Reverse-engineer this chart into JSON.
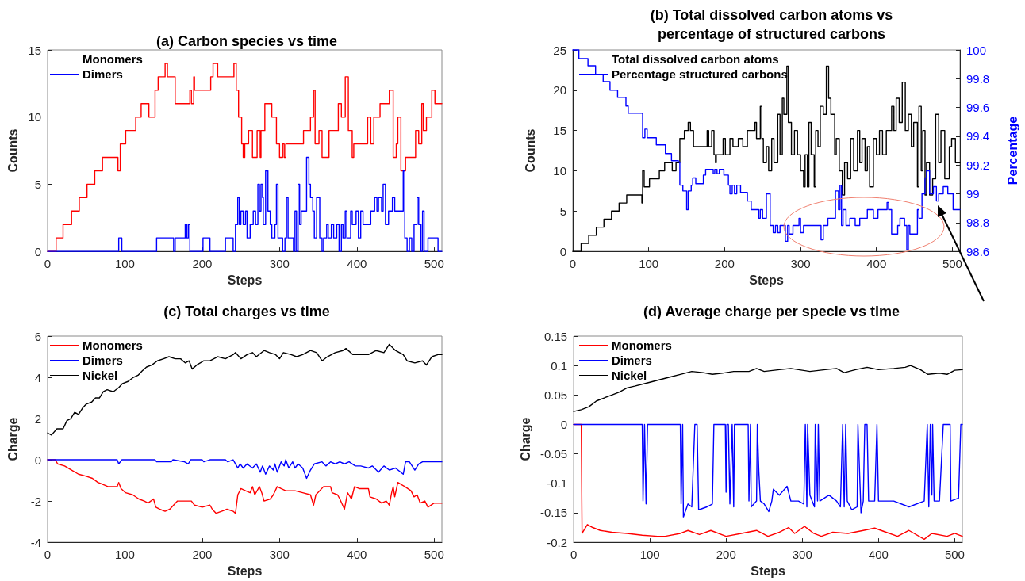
{
  "chart_data": [
    {
      "type": "step",
      "title": "(a) Carbon species vs time",
      "xlabel": "Steps",
      "ylabel": "Counts",
      "xlim": [
        0,
        510
      ],
      "xticks": [
        0,
        100,
        200,
        300,
        400,
        500
      ],
      "ylim": [
        0,
        15
      ],
      "yticks": [
        0,
        5,
        10,
        15
      ],
      "grid": false,
      "legend": "top left",
      "marker": "none",
      "line_style": "solid",
      "series": [
        {
          "name": "Monomers",
          "color": "#ff0000",
          "x": [
            0,
            11,
            20,
            31,
            41,
            51,
            61,
            71,
            91,
            94,
            101,
            114,
            121,
            131,
            139,
            143,
            152,
            155,
            165,
            184,
            186,
            189,
            190,
            211,
            214,
            220,
            241,
            244,
            247,
            251,
            253,
            255,
            260,
            265,
            271,
            275,
            276,
            281,
            290,
            296,
            300,
            304,
            306,
            308,
            331,
            340,
            344,
            346,
            351,
            355,
            364,
            376,
            380,
            385,
            389,
            394,
            396,
            414,
            418,
            422,
            430,
            442,
            447,
            451,
            453,
            457,
            463,
            476,
            480,
            484,
            486,
            490,
            497,
            501,
            510
          ],
          "values": [
            0,
            1,
            2,
            3,
            4,
            5,
            6,
            7,
            6,
            8,
            9,
            10,
            11,
            10,
            12,
            13,
            14,
            13,
            11,
            12,
            11,
            13,
            12,
            13,
            14,
            13,
            14,
            12,
            10,
            8,
            7,
            8,
            9,
            7,
            9,
            7,
            9,
            11,
            10,
            8,
            7,
            8,
            7,
            8,
            9,
            10,
            12,
            8,
            9,
            7,
            9,
            11,
            10,
            13,
            9,
            7,
            8,
            10,
            8,
            10,
            11,
            12,
            7,
            8,
            10,
            6,
            7,
            9,
            8,
            11,
            9,
            10,
            12,
            11,
            11
          ]
        },
        {
          "name": "Dimers",
          "color": "#0000ff",
          "x": [
            0,
            92,
            96,
            141,
            143,
            163,
            165,
            178,
            180,
            182,
            184,
            201,
            210,
            230,
            240,
            243,
            246,
            248,
            250,
            253,
            256,
            258,
            262,
            266,
            269,
            272,
            274,
            276,
            278,
            279,
            282,
            285,
            288,
            290,
            294,
            296,
            298,
            304,
            307,
            309,
            311,
            318,
            320,
            322,
            324,
            326,
            328,
            335,
            338,
            340,
            343,
            345,
            348,
            352,
            355,
            357,
            361,
            363,
            367,
            370,
            374,
            377,
            380,
            382,
            385,
            387,
            392,
            394,
            399,
            402,
            405,
            408,
            418,
            423,
            426,
            428,
            432,
            434,
            437,
            441,
            446,
            449,
            460,
            462,
            465,
            468,
            471,
            474,
            478,
            480,
            483,
            485,
            487,
            492,
            505,
            510
          ],
          "values": [
            0,
            1,
            0,
            1,
            1,
            0,
            1,
            2,
            1,
            2,
            0,
            1,
            0,
            1,
            0,
            2,
            4,
            2,
            3,
            2,
            3,
            1,
            2,
            3,
            2,
            5,
            3,
            5,
            4,
            2,
            6,
            3,
            2,
            1,
            2,
            5,
            1,
            0,
            1,
            4,
            1,
            0,
            3,
            0,
            5,
            2,
            3,
            7,
            5,
            4,
            3,
            1,
            4,
            1,
            0,
            1,
            2,
            1,
            2,
            1,
            2,
            0,
            2,
            1,
            3,
            1,
            3,
            2,
            3,
            1,
            3,
            2,
            3,
            4,
            3,
            4,
            3,
            5,
            2,
            3,
            4,
            3,
            6,
            1,
            0,
            1,
            0,
            2,
            4,
            2,
            0,
            3,
            0,
            1,
            0,
            0
          ]
        }
      ]
    },
    {
      "type": "step",
      "title": "(b) Total dissolved carbon atoms vs\npercentage of structured carbons",
      "xlabel": "Steps",
      "ylabel": "Counts",
      "y2label": "Percentage",
      "xlim": [
        0,
        510
      ],
      "xticks": [
        0,
        100,
        200,
        300,
        400,
        500
      ],
      "ylim": [
        0,
        25
      ],
      "yticks": [
        0,
        5,
        10,
        15,
        20,
        25
      ],
      "y2lim": [
        98.6,
        100
      ],
      "y2ticks": [
        98.6,
        98.8,
        99,
        99.2,
        99.4,
        99.6,
        99.8,
        100
      ],
      "grid": false,
      "legend": "top left",
      "marker": "none",
      "line_style": "solid",
      "series": [
        {
          "name": "Total dissolved carbon atoms",
          "color": "#000000",
          "x": [
            0,
            11,
            21,
            31,
            41,
            51,
            61,
            71,
            91,
            92,
            94,
            101,
            114,
            121,
            131,
            136,
            141,
            147,
            152,
            155,
            159,
            177,
            179,
            183,
            186,
            188,
            189,
            198,
            201,
            207,
            211,
            218,
            224,
            230,
            240,
            242,
            247,
            249,
            251,
            255,
            258,
            262,
            265,
            270,
            273,
            276,
            278,
            282,
            284,
            288,
            292,
            296,
            300,
            304,
            306,
            309,
            311,
            314,
            318,
            320,
            323,
            326,
            330,
            334,
            337,
            340,
            345,
            347,
            351,
            355,
            358,
            362,
            366,
            370,
            375,
            378,
            381,
            385,
            388,
            391,
            396,
            400,
            404,
            408,
            413,
            420,
            423,
            426,
            430,
            434,
            438,
            442,
            446,
            449,
            454,
            456,
            459,
            461,
            464,
            466,
            470,
            474,
            478,
            482,
            485,
            490,
            496,
            499,
            504,
            510
          ],
          "values": [
            0,
            1,
            2,
            3,
            4,
            5,
            6,
            7,
            6,
            10,
            8,
            9,
            10,
            11,
            10,
            11,
            14,
            15,
            16,
            15,
            13,
            15,
            13,
            15,
            12,
            11,
            12,
            14,
            12,
            14,
            13,
            14,
            13,
            15,
            16,
            14,
            18,
            14,
            11,
            13,
            10,
            14,
            11,
            17,
            12,
            19,
            17,
            23,
            16,
            12,
            15,
            12,
            10,
            8,
            12,
            8,
            16,
            12,
            8,
            15,
            13,
            18,
            17,
            23,
            19,
            17,
            12,
            14,
            10,
            7,
            11,
            9,
            14,
            10,
            15,
            11,
            14,
            10,
            13,
            8,
            14,
            12,
            15,
            12,
            15,
            18,
            15,
            19,
            16,
            21,
            15,
            17,
            13,
            16,
            8,
            18,
            10,
            15,
            7,
            11,
            7,
            9,
            17,
            11,
            15,
            9,
            13,
            14,
            11,
            11
          ]
        },
        {
          "name": "Percentage structured carbons",
          "color": "#0000ff",
          "axis": "y2",
          "x": [
            0,
            8,
            20,
            30,
            40,
            49,
            59,
            70,
            73,
            92,
            95,
            98,
            110,
            122,
            130,
            139,
            141,
            145,
            150,
            152,
            156,
            158,
            162,
            172,
            175,
            185,
            187,
            190,
            193,
            199,
            205,
            207,
            210,
            213,
            216,
            221,
            230,
            235,
            245,
            247,
            250,
            255,
            260,
            264,
            267,
            270,
            273,
            280,
            283,
            285,
            290,
            298,
            300,
            304,
            325,
            327,
            330,
            336,
            346,
            350,
            352,
            354,
            356,
            360,
            365,
            372,
            378,
            388,
            396,
            402,
            414,
            416,
            420,
            428,
            431,
            437,
            440,
            442,
            444,
            454,
            456,
            460,
            464,
            466,
            470,
            475,
            479,
            482,
            488,
            494,
            501,
            510
          ],
          "values": [
            100,
            99.94,
            99.89,
            99.83,
            99.78,
            99.72,
            99.67,
            99.61,
            99.56,
            99.39,
            99.45,
            99.39,
            99.34,
            99.28,
            99.23,
            99.22,
            99.06,
            99.02,
            98.89,
            99.02,
            99.06,
            99.11,
            99.07,
            99.13,
            99.17,
            99.14,
            99.17,
            99.14,
            99.17,
            99.13,
            99.06,
            99.0,
            99.06,
            99.0,
            99.06,
            99.01,
            98.95,
            98.89,
            98.83,
            98.89,
            98.83,
            99.0,
            98.78,
            98.73,
            98.78,
            98.73,
            98.78,
            98.67,
            98.78,
            98.72,
            98.78,
            98.83,
            98.73,
            98.78,
            98.78,
            98.68,
            98.78,
            98.83,
            99.02,
            98.89,
            99.06,
            98.78,
            98.89,
            98.78,
            98.83,
            98.78,
            98.83,
            98.89,
            98.83,
            98.89,
            98.94,
            98.89,
            98.72,
            98.78,
            98.83,
            98.78,
            98.61,
            98.78,
            98.72,
            98.89,
            98.83,
            99.0,
            99.11,
            99.16,
            99.0,
            99.05,
            98.95,
            99.0,
            99.05,
            99.0,
            98.89,
            98.89
          ]
        }
      ]
    },
    {
      "type": "line",
      "title": "(c) Total charges vs time",
      "xlabel": "Steps",
      "ylabel": "Charge",
      "xlim": [
        0,
        510
      ],
      "xticks": [
        0,
        100,
        200,
        300,
        400,
        500
      ],
      "ylim": [
        -4,
        6
      ],
      "yticks": [
        -4,
        -2,
        0,
        2,
        4,
        6
      ],
      "grid": false,
      "legend": "top left",
      "marker": "none",
      "line_style": "solid",
      "series": [
        {
          "name": "Monomers",
          "color": "#ff0000",
          "x": [
            0,
            10,
            13,
            22,
            31,
            40,
            50,
            58,
            65,
            72,
            78,
            90,
            92,
            95,
            101,
            110,
            118,
            125,
            130,
            137,
            140,
            145,
            152,
            158,
            163,
            168,
            180,
            186,
            190,
            200,
            210,
            213,
            218,
            225,
            232,
            240,
            243,
            246,
            250,
            256,
            262,
            265,
            268,
            274,
            277,
            280,
            288,
            292,
            297,
            302,
            308,
            320,
            330,
            340,
            344,
            347,
            357,
            366,
            368,
            375,
            378,
            384,
            388,
            393,
            397,
            403,
            415,
            417,
            425,
            432,
            438,
            442,
            445,
            447,
            449,
            453,
            462,
            470,
            474,
            478,
            482,
            488,
            492,
            500,
            510
          ],
          "values": [
            0,
            0,
            -0.2,
            -0.3,
            -0.5,
            -0.7,
            -0.8,
            -0.9,
            -1.1,
            -1.2,
            -1.3,
            -1.3,
            -1.1,
            -1.4,
            -1.6,
            -1.7,
            -1.9,
            -2.0,
            -2.1,
            -1.9,
            -2.3,
            -2.4,
            -2.5,
            -2.4,
            -2.2,
            -2.0,
            -2.0,
            -2.0,
            -2.2,
            -2.3,
            -2.2,
            -2.4,
            -2.6,
            -2.5,
            -2.4,
            -2.5,
            -2.6,
            -1.7,
            -1.4,
            -1.5,
            -1.6,
            -1.3,
            -1.7,
            -1.3,
            -1.6,
            -2.0,
            -1.9,
            -1.7,
            -1.3,
            -1.4,
            -1.5,
            -1.5,
            -1.6,
            -1.7,
            -2.2,
            -1.7,
            -1.3,
            -1.3,
            -1.6,
            -1.7,
            -1.9,
            -2.4,
            -1.6,
            -1.9,
            -1.3,
            -1.4,
            -1.4,
            -1.8,
            -1.9,
            -2.1,
            -2.0,
            -2.2,
            -1.6,
            -1.3,
            -1.8,
            -1.1,
            -1.3,
            -1.5,
            -1.8,
            -1.7,
            -2.1,
            -2.0,
            -2.3,
            -2.1,
            -2.1
          ]
        },
        {
          "name": "Dimers",
          "color": "#0000ff",
          "x": [
            0,
            90,
            92,
            96,
            139,
            141,
            160,
            162,
            177,
            182,
            185,
            200,
            202,
            210,
            230,
            233,
            240,
            246,
            249,
            253,
            258,
            265,
            270,
            275,
            278,
            282,
            287,
            292,
            294,
            297,
            302,
            306,
            308,
            312,
            317,
            320,
            324,
            330,
            335,
            340,
            345,
            355,
            360,
            366,
            372,
            378,
            384,
            390,
            398,
            405,
            415,
            420,
            428,
            435,
            442,
            450,
            460,
            463,
            468,
            475,
            480,
            485,
            492,
            505,
            510
          ],
          "values": [
            0,
            0,
            -0.2,
            0,
            0,
            -0.1,
            -0.1,
            0,
            -0.1,
            -0.2,
            0,
            0,
            -0.1,
            0,
            0,
            -0.1,
            0,
            -0.4,
            -0.2,
            -0.4,
            -0.2,
            -0.4,
            -0.2,
            -0.6,
            -0.3,
            -0.7,
            -0.3,
            -0.5,
            -0.2,
            -0.6,
            -0.1,
            -0.3,
            0,
            -0.4,
            -0.1,
            -0.4,
            -0.2,
            -0.4,
            -0.9,
            -0.5,
            -0.2,
            -0.1,
            -0.3,
            -0.1,
            -0.2,
            -0.1,
            -0.2,
            -0.1,
            -0.3,
            -0.3,
            -0.4,
            -0.3,
            -0.6,
            -0.3,
            -0.5,
            -0.4,
            -0.7,
            -0.1,
            -0.1,
            -0.5,
            -0.2,
            -0.1,
            -0.1,
            -0.1,
            -0.1
          ]
        },
        {
          "name": "Nickel",
          "color": "#000000",
          "x": [
            0,
            5,
            12,
            20,
            25,
            30,
            35,
            40,
            45,
            50,
            57,
            62,
            67,
            72,
            77,
            85,
            92,
            97,
            104,
            111,
            117,
            122,
            128,
            135,
            142,
            150,
            157,
            165,
            172,
            178,
            183,
            187,
            193,
            202,
            210,
            220,
            230,
            240,
            243,
            250,
            258,
            265,
            270,
            280,
            287,
            295,
            300,
            305,
            315,
            322,
            330,
            340,
            348,
            355,
            362,
            372,
            382,
            386,
            395,
            405,
            415,
            425,
            435,
            442,
            450,
            460,
            465,
            475,
            485,
            490,
            497,
            505,
            510
          ],
          "values": [
            1.3,
            1.2,
            1.5,
            1.5,
            1.9,
            2.0,
            2.3,
            2.2,
            2.5,
            2.7,
            2.8,
            3.0,
            3.0,
            3.3,
            3.4,
            3.3,
            3.5,
            3.7,
            3.8,
            4.0,
            4.1,
            4.3,
            4.5,
            4.6,
            4.8,
            4.9,
            5.0,
            4.9,
            4.9,
            4.7,
            4.8,
            4.4,
            4.6,
            4.8,
            4.8,
            5.0,
            4.9,
            5.1,
            5.2,
            4.9,
            5.1,
            5.2,
            5.0,
            5.3,
            5.2,
            5.1,
            4.9,
            5.2,
            5.1,
            5.0,
            5.1,
            5.3,
            5.2,
            4.8,
            5.0,
            5.2,
            5.3,
            5.4,
            5.1,
            5.1,
            5.1,
            5.3,
            5.2,
            5.6,
            5.3,
            5.1,
            4.8,
            4.7,
            4.8,
            4.6,
            5.0,
            5.1,
            5.1
          ]
        }
      ]
    },
    {
      "type": "line",
      "title": "(d) Average charge per specie vs time",
      "xlabel": "Steps",
      "ylabel": "Charge",
      "xlim": [
        0,
        510
      ],
      "xticks": [
        0,
        100,
        200,
        300,
        400,
        500
      ],
      "ylim": [
        -0.2,
        0.15
      ],
      "yticks": [
        -0.2,
        -0.15,
        -0.1,
        -0.05,
        0,
        0.05,
        0.1,
        0.15
      ],
      "grid": false,
      "legend": "top left",
      "marker": "none",
      "line_style": "solid",
      "series": [
        {
          "name": "Monomers",
          "color": "#ff0000",
          "x": [
            0,
            10,
            11,
            18,
            25,
            35,
            50,
            70,
            90,
            110,
            120,
            140,
            150,
            165,
            180,
            200,
            220,
            240,
            255,
            270,
            282,
            290,
            303,
            315,
            325,
            340,
            360,
            380,
            395,
            410,
            425,
            440,
            460,
            470,
            490,
            500,
            510
          ],
          "values": [
            0,
            0,
            -0.185,
            -0.17,
            -0.175,
            -0.18,
            -0.183,
            -0.185,
            -0.188,
            -0.19,
            -0.19,
            -0.185,
            -0.18,
            -0.187,
            -0.18,
            -0.19,
            -0.185,
            -0.18,
            -0.19,
            -0.183,
            -0.175,
            -0.185,
            -0.173,
            -0.185,
            -0.19,
            -0.183,
            -0.185,
            -0.18,
            -0.176,
            -0.183,
            -0.19,
            -0.18,
            -0.195,
            -0.185,
            -0.19,
            -0.185,
            -0.19
          ]
        },
        {
          "name": "Dimers",
          "color": "#0000ff",
          "x": [
            0,
            90,
            91,
            93,
            95,
            97,
            140,
            141,
            143,
            144,
            150,
            155,
            159,
            162,
            164,
            175,
            182,
            184,
            199,
            200,
            201,
            203,
            205,
            208,
            210,
            211,
            229,
            230,
            232,
            233,
            240,
            241,
            243,
            245,
            250,
            256,
            260,
            262,
            270,
            280,
            285,
            295,
            302,
            304,
            306,
            307,
            310,
            316,
            317,
            320,
            321,
            323,
            335,
            345,
            350,
            353,
            355,
            357,
            359,
            365,
            372,
            373,
            377,
            380,
            382,
            385,
            387,
            395,
            398,
            400,
            420,
            440,
            460,
            464,
            466,
            468,
            470,
            471,
            473,
            480,
            485,
            494,
            495,
            505,
            508,
            510
          ],
          "values": [
            0,
            0,
            -0.13,
            0,
            -0.135,
            0,
            0,
            -0.135,
            0,
            -0.157,
            -0.135,
            -0.14,
            0,
            0,
            -0.145,
            -0.14,
            -0.135,
            0,
            0,
            -0.115,
            0,
            0,
            -0.135,
            0,
            -0.14,
            0,
            0,
            -0.13,
            0,
            -0.14,
            -0.13,
            0,
            -0.08,
            -0.13,
            -0.135,
            -0.148,
            -0.13,
            -0.11,
            -0.12,
            -0.105,
            -0.13,
            -0.13,
            -0.135,
            0,
            -0.14,
            0,
            -0.12,
            -0.14,
            0,
            -0.13,
            0,
            -0.13,
            -0.12,
            -0.13,
            -0.14,
            0,
            -0.14,
            0,
            -0.13,
            -0.145,
            -0.14,
            0,
            -0.15,
            -0.13,
            0,
            0,
            -0.13,
            -0.13,
            0,
            -0.13,
            -0.13,
            -0.14,
            -0.13,
            0,
            -0.14,
            0,
            -0.12,
            0,
            -0.13,
            -0.13,
            0,
            0,
            -0.13,
            -0.125,
            0,
            0
          ]
        },
        {
          "name": "Nickel",
          "color": "#000000",
          "x": [
            0,
            10,
            20,
            30,
            40,
            50,
            60,
            70,
            80,
            95,
            110,
            125,
            140,
            155,
            170,
            182,
            195,
            210,
            230,
            240,
            250,
            270,
            285,
            300,
            310,
            330,
            345,
            355,
            370,
            385,
            400,
            420,
            435,
            442,
            455,
            465,
            480,
            490,
            500,
            510
          ],
          "values": [
            0.022,
            0.025,
            0.03,
            0.04,
            0.045,
            0.05,
            0.055,
            0.062,
            0.065,
            0.07,
            0.075,
            0.08,
            0.085,
            0.09,
            0.088,
            0.085,
            0.087,
            0.09,
            0.09,
            0.095,
            0.09,
            0.093,
            0.095,
            0.092,
            0.09,
            0.093,
            0.095,
            0.088,
            0.093,
            0.097,
            0.093,
            0.095,
            0.097,
            0.1,
            0.093,
            0.085,
            0.087,
            0.085,
            0.092,
            0.093
          ]
        }
      ]
    }
  ]
}
